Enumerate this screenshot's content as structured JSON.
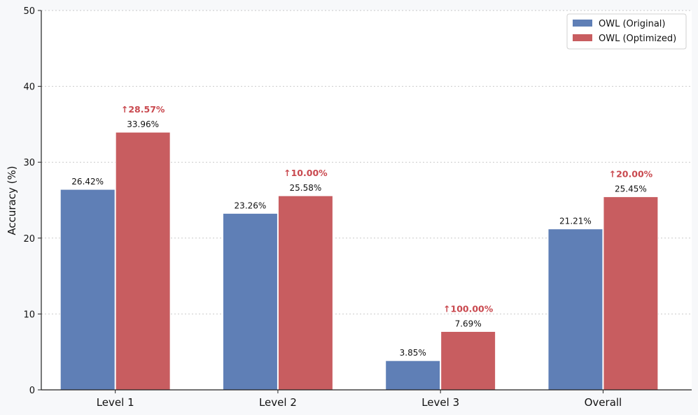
{
  "chart_data": {
    "type": "bar",
    "categories": [
      "Level 1",
      "Level 2",
      "Level 3",
      "Overall"
    ],
    "series": [
      {
        "name": "OWL (Original)",
        "values": [
          26.42,
          23.26,
          3.85,
          21.21
        ],
        "labels": [
          "26.42%",
          "23.26%",
          "3.85%",
          "21.21%"
        ],
        "color": "#5f7fb6"
      },
      {
        "name": "OWL (Optimized)",
        "values": [
          33.96,
          25.58,
          7.69,
          25.45
        ],
        "labels": [
          "33.96%",
          "25.58%",
          "7.69%",
          "25.45%"
        ],
        "color": "#c85d60"
      }
    ],
    "improvements": [
      "↑28.57%",
      "↑10.00%",
      "↑100.00%",
      "↑20.00%"
    ],
    "improvement_color": "#c9494f",
    "ylabel": "Accuracy (%)",
    "ylim": [
      0,
      50
    ],
    "yticks": [
      0,
      10,
      20,
      30,
      40,
      50
    ],
    "grid": "horizontal-dotted",
    "legend": "top-right"
  }
}
